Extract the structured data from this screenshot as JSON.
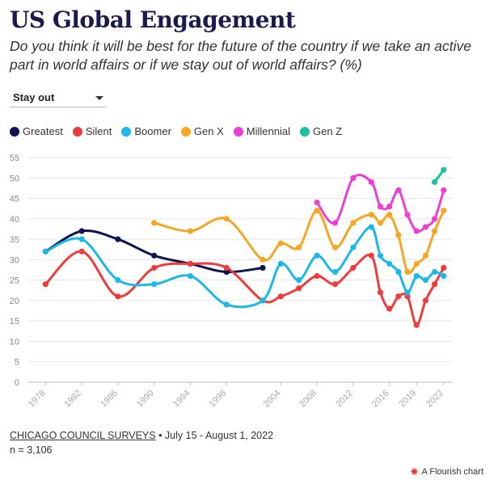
{
  "header": {
    "title": "US Global Engagement",
    "subtitle": "Do you think it will be best for the future of the country if we take an active part in world affairs or if we stay out of world affairs? (%)"
  },
  "dropdown": {
    "selected": "Stay out"
  },
  "footer": {
    "source": "CHICAGO COUNCIL SURVEYS",
    "dates": " • July 15 - August 1, 2022",
    "n": "n = 3,106",
    "credit": "A Flourish chart"
  },
  "chart_data": {
    "type": "line",
    "ylim": [
      0,
      55
    ],
    "yticks": [
      0,
      5,
      10,
      15,
      20,
      25,
      30,
      35,
      40,
      45,
      50,
      55
    ],
    "xlim": [
      1976,
      2023
    ],
    "xticks": [
      "1978",
      "1982",
      "1986",
      "1990",
      "1994",
      "1998",
      "2004",
      "2008",
      "2012",
      "2016",
      "2019",
      "2022"
    ],
    "xtick_years": [
      1978,
      1982,
      1986,
      1990,
      1994,
      1998,
      2004,
      2008,
      2012,
      2016,
      2019,
      2022
    ],
    "grid": "horizontal",
    "legend_position": "top-left",
    "series": [
      {
        "name": "Greatest",
        "color": "#0d1450",
        "x": [
          1978,
          1982,
          1986,
          1990,
          1994,
          1998,
          2002
        ],
        "y": [
          32,
          37,
          35,
          31,
          29,
          27,
          28
        ]
      },
      {
        "name": "Silent",
        "color": "#ef3b3b",
        "x": [
          1978,
          1982,
          1986,
          1990,
          1994,
          1998,
          2002,
          2004,
          2006,
          2008,
          2010,
          2012,
          2014,
          2015,
          2016,
          2017,
          2018,
          2019,
          2020,
          2021,
          2022
        ],
        "y": [
          24,
          32,
          21,
          28,
          29,
          28,
          20,
          21,
          23,
          26,
          24,
          28,
          31,
          22,
          18,
          21,
          21,
          14,
          20,
          24,
          28
        ]
      },
      {
        "name": "Boomer",
        "color": "#1bb8e8",
        "x": [
          1978,
          1982,
          1986,
          1990,
          1994,
          1998,
          2002,
          2004,
          2006,
          2008,
          2010,
          2012,
          2014,
          2015,
          2016,
          2017,
          2018,
          2019,
          2020,
          2021,
          2022
        ],
        "y": [
          32,
          35,
          25,
          24,
          26,
          19,
          20,
          29,
          25,
          31,
          27,
          33,
          38,
          31,
          29,
          27,
          22,
          26,
          25,
          27,
          26
        ]
      },
      {
        "name": "Gen X",
        "color": "#f5a623",
        "x": [
          1990,
          1994,
          1998,
          2002,
          2004,
          2006,
          2008,
          2010,
          2012,
          2014,
          2015,
          2016,
          2017,
          2018,
          2019,
          2020,
          2021,
          2022
        ],
        "y": [
          39,
          37,
          40,
          30,
          34,
          33,
          42,
          33,
          39,
          41,
          39,
          41,
          36,
          27,
          29,
          31,
          37,
          42
        ]
      },
      {
        "name": "Millennial",
        "color": "#ee3fd4",
        "x": [
          2008,
          2010,
          2012,
          2014,
          2015,
          2016,
          2017,
          2018,
          2019,
          2020,
          2021,
          2022
        ],
        "y": [
          44,
          39,
          50,
          49,
          43,
          43,
          47,
          41,
          37,
          38,
          40,
          47
        ]
      },
      {
        "name": "Gen Z",
        "color": "#1cc1a0",
        "x": [
          2021,
          2022
        ],
        "y": [
          49,
          52
        ]
      }
    ]
  }
}
